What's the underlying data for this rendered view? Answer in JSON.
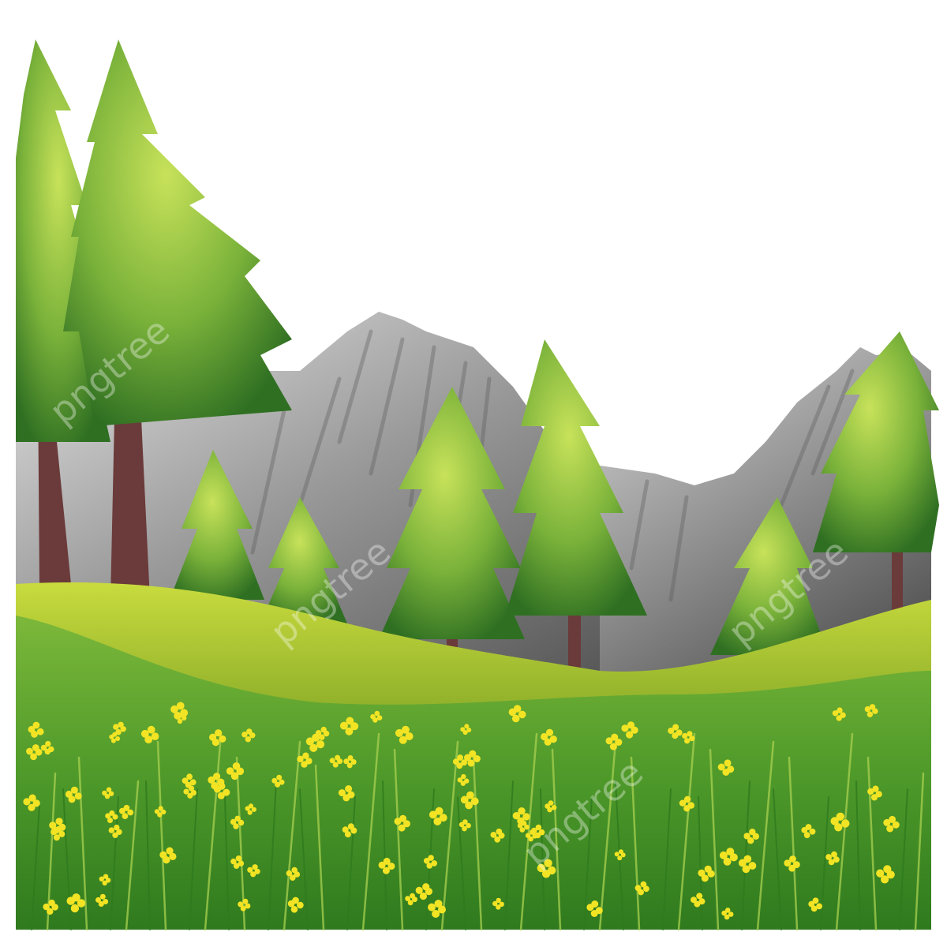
{
  "scene": {
    "subject": "painted landscape illustration",
    "palette": {
      "sky": "#ffffff",
      "mountain_light": "#d8d8d8",
      "mountain_mid": "#8e8e8e",
      "mountain_dark": "#4a4a4a",
      "hill_light": "#c2d63a",
      "hill_dark": "#86a828",
      "meadow": "#5aa02c",
      "meadow_dark": "#2f7a1e",
      "tree_light": "#b6d84a",
      "tree_mid": "#6ea834",
      "tree_dark": "#2f6f22",
      "trunk": "#6b3a3a",
      "flower": "#f2e424"
    },
    "watermark": {
      "text": "pngtree"
    }
  }
}
